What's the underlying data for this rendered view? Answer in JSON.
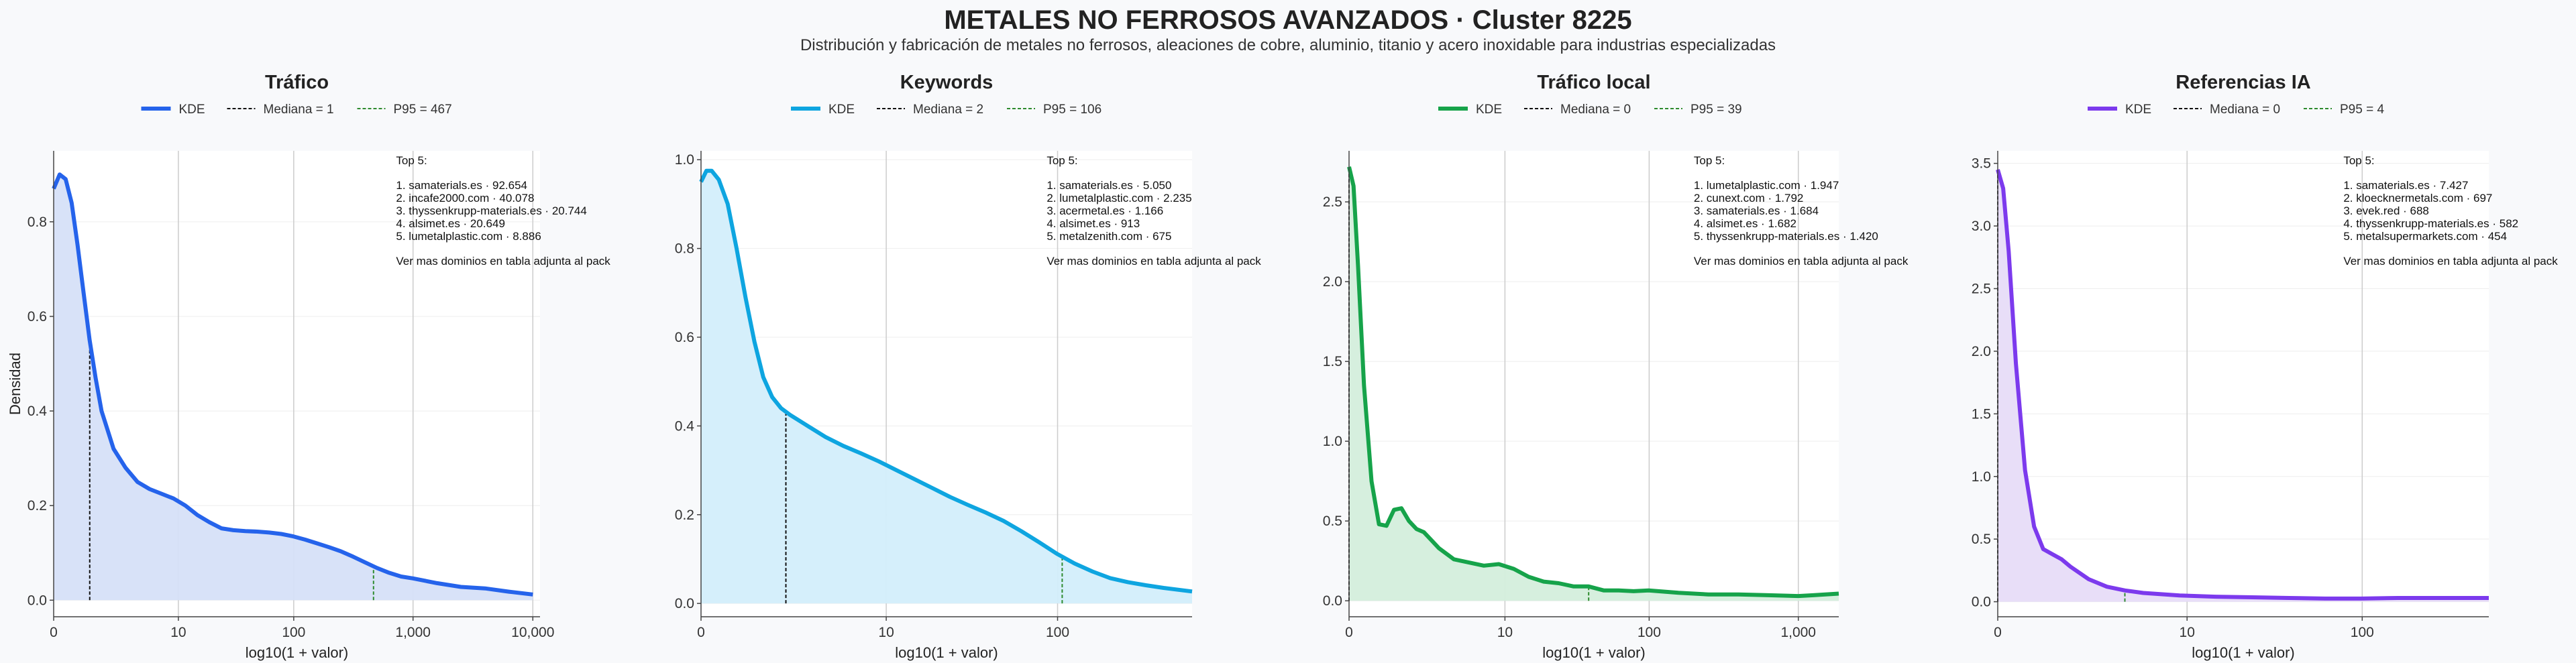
{
  "page": {
    "title": "METALES NO FERROSOS AVANZADOS · Cluster 8225",
    "subtitle": "Distribución y fabricación de metales no ferrosos, aleaciones de cobre, aluminio, titanio y acero inoxidable para industrias especializadas"
  },
  "chart_data": [
    {
      "type": "area",
      "title": "Tráfico",
      "xlabel": "log10(1 + valor)",
      "ylabel": "Densidad",
      "color": "#2563eb",
      "fill": "#d6e0f8",
      "xlim": [
        0,
        4.06
      ],
      "ylim": [
        -0.035,
        0.95
      ],
      "xticks": [
        {
          "v": 0,
          "label": "0"
        },
        {
          "v": 1.041,
          "label": "10"
        },
        {
          "v": 2.004,
          "label": "100"
        },
        {
          "v": 3.0,
          "label": "1,000"
        },
        {
          "v": 4.0,
          "label": "10,000"
        }
      ],
      "yticks": [
        {
          "v": 0.0,
          "label": "0.0"
        },
        {
          "v": 0.2,
          "label": "0.2"
        },
        {
          "v": 0.4,
          "label": "0.4"
        },
        {
          "v": 0.6,
          "label": "0.6"
        },
        {
          "v": 0.8,
          "label": "0.8"
        }
      ],
      "median": {
        "x": 0.301,
        "label": "Mediana = 1"
      },
      "p95": {
        "x": 2.67,
        "label": "P95 = 467"
      },
      "kde_label": "KDE",
      "x": [
        0,
        0.05,
        0.1,
        0.15,
        0.2,
        0.25,
        0.3,
        0.35,
        0.4,
        0.5,
        0.6,
        0.7,
        0.8,
        0.9,
        1.0,
        1.1,
        1.2,
        1.3,
        1.4,
        1.5,
        1.6,
        1.7,
        1.8,
        1.9,
        2.0,
        2.1,
        2.2,
        2.3,
        2.4,
        2.5,
        2.6,
        2.7,
        2.8,
        2.9,
        3.0,
        3.2,
        3.4,
        3.6,
        3.8,
        4.0
      ],
      "y": [
        0.87,
        0.9,
        0.89,
        0.84,
        0.75,
        0.65,
        0.55,
        0.47,
        0.4,
        0.32,
        0.28,
        0.25,
        0.235,
        0.225,
        0.215,
        0.2,
        0.18,
        0.165,
        0.152,
        0.148,
        0.146,
        0.145,
        0.143,
        0.14,
        0.135,
        0.128,
        0.12,
        0.112,
        0.103,
        0.092,
        0.08,
        0.068,
        0.058,
        0.05,
        0.046,
        0.036,
        0.028,
        0.025,
        0.018,
        0.012
      ],
      "top5": {
        "heading": "Top 5:",
        "items": [
          "1. samaterials.es · 92.654",
          "2. incafe2000.com · 40.078",
          "3. thyssenkrupp-materials.es · 20.744",
          "4. alsimet.es · 20.649",
          "5. lumetalplastic.com · 8.886"
        ],
        "footer": "Ver mas dominios en tabla adjunta al pack"
      }
    },
    {
      "type": "area",
      "title": "Keywords",
      "xlabel": "log10(1 + valor)",
      "ylabel": "",
      "color": "#0ea5e0",
      "fill": "#d3eefb",
      "xlim": [
        0,
        2.76
      ],
      "ylim": [
        -0.03,
        1.02
      ],
      "xticks": [
        {
          "v": 0,
          "label": "0"
        },
        {
          "v": 1.041,
          "label": "10"
        },
        {
          "v": 2.004,
          "label": "100"
        }
      ],
      "yticks": [
        {
          "v": 0.0,
          "label": "0.0"
        },
        {
          "v": 0.2,
          "label": "0.2"
        },
        {
          "v": 0.4,
          "label": "0.4"
        },
        {
          "v": 0.6,
          "label": "0.6"
        },
        {
          "v": 0.8,
          "label": "0.8"
        },
        {
          "v": 1.0,
          "label": "1.0"
        }
      ],
      "median": {
        "x": 0.477,
        "label": "Mediana = 2"
      },
      "p95": {
        "x": 2.03,
        "label": "P95 = 106"
      },
      "kde_label": "KDE",
      "x": [
        0,
        0.03,
        0.06,
        0.1,
        0.15,
        0.2,
        0.25,
        0.3,
        0.35,
        0.4,
        0.45,
        0.5,
        0.6,
        0.7,
        0.8,
        0.9,
        1.0,
        1.1,
        1.2,
        1.3,
        1.4,
        1.5,
        1.6,
        1.7,
        1.8,
        1.9,
        2.0,
        2.1,
        2.2,
        2.3,
        2.4,
        2.5,
        2.6,
        2.76
      ],
      "y": [
        0.95,
        0.975,
        0.975,
        0.955,
        0.9,
        0.8,
        0.69,
        0.59,
        0.51,
        0.465,
        0.44,
        0.425,
        0.4,
        0.375,
        0.355,
        0.338,
        0.32,
        0.3,
        0.28,
        0.26,
        0.24,
        0.222,
        0.205,
        0.186,
        0.163,
        0.138,
        0.112,
        0.09,
        0.072,
        0.057,
        0.048,
        0.041,
        0.035,
        0.027
      ],
      "top5": {
        "heading": "Top 5:",
        "items": [
          "1. samaterials.es · 5.050",
          "2. lumetalplastic.com · 2.235",
          "3. acermetal.es · 1.166",
          "4. alsimet.es · 913",
          "5. metalzenith.com · 675"
        ],
        "footer": "Ver mas dominios en tabla adjunta al pack"
      }
    },
    {
      "type": "area",
      "title": "Tráfico local",
      "xlabel": "log10(1 + valor)",
      "ylabel": "",
      "color": "#16a34a",
      "fill": "#d4eedc",
      "xlim": [
        0,
        3.27
      ],
      "ylim": [
        -0.1,
        2.82
      ],
      "xticks": [
        {
          "v": 0,
          "label": "0"
        },
        {
          "v": 1.041,
          "label": "10"
        },
        {
          "v": 2.004,
          "label": "100"
        },
        {
          "v": 3.0,
          "label": "1,000"
        }
      ],
      "yticks": [
        {
          "v": 0.0,
          "label": "0.0"
        },
        {
          "v": 0.5,
          "label": "0.5"
        },
        {
          "v": 1.0,
          "label": "1.0"
        },
        {
          "v": 1.5,
          "label": "1.5"
        },
        {
          "v": 2.0,
          "label": "2.0"
        },
        {
          "v": 2.5,
          "label": "2.5"
        }
      ],
      "median": {
        "x": 0,
        "label": "Mediana = 0"
      },
      "p95": {
        "x": 1.6,
        "label": "P95 = 39"
      },
      "kde_label": "KDE",
      "x": [
        0,
        0.03,
        0.06,
        0.1,
        0.15,
        0.2,
        0.25,
        0.3,
        0.35,
        0.4,
        0.45,
        0.5,
        0.55,
        0.6,
        0.7,
        0.8,
        0.9,
        1.0,
        1.1,
        1.2,
        1.3,
        1.4,
        1.5,
        1.6,
        1.7,
        1.8,
        1.9,
        2.0,
        2.2,
        2.4,
        2.6,
        2.8,
        3.0,
        3.1,
        3.27
      ],
      "y": [
        2.72,
        2.6,
        2.1,
        1.35,
        0.75,
        0.48,
        0.47,
        0.57,
        0.58,
        0.5,
        0.45,
        0.43,
        0.38,
        0.33,
        0.26,
        0.24,
        0.22,
        0.23,
        0.2,
        0.15,
        0.12,
        0.11,
        0.09,
        0.09,
        0.065,
        0.065,
        0.06,
        0.065,
        0.05,
        0.04,
        0.04,
        0.035,
        0.03,
        0.035,
        0.045
      ],
      "top5": {
        "heading": "Top 5:",
        "items": [
          "1. lumetalplastic.com · 1.947",
          "2. cunext.com · 1.792",
          "3. samaterials.es · 1.684",
          "4. alsimet.es · 1.682",
          "5. thyssenkrupp-materials.es · 1.420"
        ],
        "footer": "Ver mas dominios en tabla adjunta al pack"
      }
    },
    {
      "type": "area",
      "title": "Referencias IA",
      "xlabel": "log10(1 + valor)",
      "ylabel": "",
      "color": "#7c3aed",
      "fill": "#e7dcf8",
      "xlim": [
        0,
        2.7
      ],
      "ylim": [
        -0.12,
        3.6
      ],
      "xticks": [
        {
          "v": 0,
          "label": "0"
        },
        {
          "v": 1.041,
          "label": "10"
        },
        {
          "v": 2.004,
          "label": "100"
        }
      ],
      "yticks": [
        {
          "v": 0.0,
          "label": "0.0"
        },
        {
          "v": 0.5,
          "label": "0.5"
        },
        {
          "v": 1.0,
          "label": "1.0"
        },
        {
          "v": 1.5,
          "label": "1.5"
        },
        {
          "v": 2.0,
          "label": "2.0"
        },
        {
          "v": 2.5,
          "label": "2.5"
        },
        {
          "v": 3.0,
          "label": "3.0"
        },
        {
          "v": 3.5,
          "label": "3.5"
        }
      ],
      "median": {
        "x": 0,
        "label": "Mediana = 0"
      },
      "p95": {
        "x": 0.699,
        "label": "P95 = 4"
      },
      "kde_label": "KDE",
      "x": [
        0,
        0.03,
        0.06,
        0.1,
        0.15,
        0.2,
        0.25,
        0.3,
        0.35,
        0.4,
        0.5,
        0.6,
        0.7,
        0.8,
        0.9,
        1.0,
        1.2,
        1.4,
        1.6,
        1.8,
        2.0,
        2.2,
        2.4,
        2.6,
        2.7
      ],
      "y": [
        3.45,
        3.3,
        2.8,
        1.9,
        1.05,
        0.6,
        0.42,
        0.38,
        0.34,
        0.28,
        0.18,
        0.12,
        0.09,
        0.07,
        0.06,
        0.05,
        0.04,
        0.035,
        0.03,
        0.025,
        0.025,
        0.03,
        0.03,
        0.03,
        0.03
      ],
      "top5": {
        "heading": "Top 5:",
        "items": [
          "1. samaterials.es · 7.427",
          "2. kloecknermetals.com · 697",
          "3. evek.red · 688",
          "4. thyssenkrupp-materials.es · 582",
          "5. metalsupermarkets.com · 454"
        ],
        "footer": "Ver mas dominios en tabla adjunta al pack"
      }
    }
  ]
}
